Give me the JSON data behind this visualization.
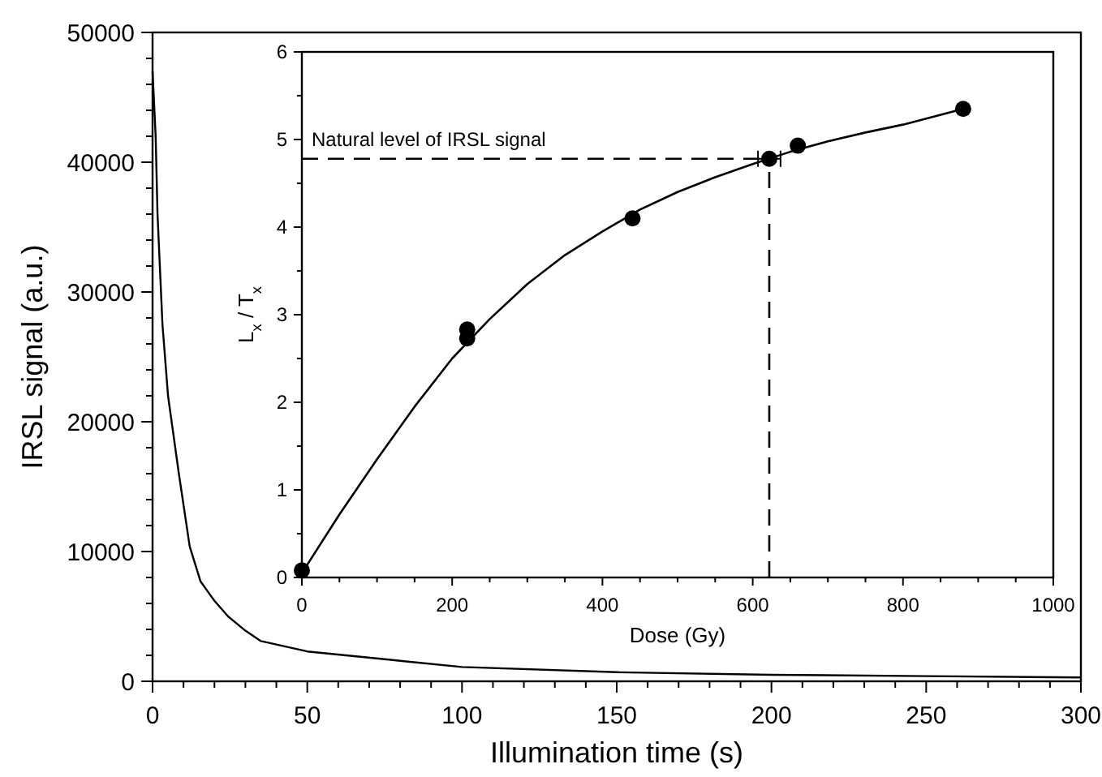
{
  "chart_data": [
    {
      "type": "line",
      "xlabel": "Illumination time (s)",
      "ylabel": "IRSL signal (a.u.)",
      "xlim": [
        0,
        300
      ],
      "ylim": [
        0,
        50000
      ],
      "xticks": [
        0,
        {
          "value": 10,
          "label": null
        },
        {
          "value": 20,
          "label": null
        },
        {
          "value": 30,
          "label": null
        },
        {
          "value": 40,
          "label": null
        },
        50,
        {
          "value": 60,
          "label": null
        },
        {
          "value": 70,
          "label": null
        },
        {
          "value": 80,
          "label": null
        },
        {
          "value": 90,
          "label": null
        },
        100,
        {
          "value": 110,
          "label": null
        },
        {
          "value": 120,
          "label": null
        },
        {
          "value": 130,
          "label": null
        },
        {
          "value": 140,
          "label": null
        },
        150,
        {
          "value": 160,
          "label": null
        },
        {
          "value": 170,
          "label": null
        },
        {
          "value": 180,
          "label": null
        },
        {
          "value": 190,
          "label": null
        },
        200,
        {
          "value": 210,
          "label": null
        },
        {
          "value": 220,
          "label": null
        },
        {
          "value": 230,
          "label": null
        },
        {
          "value": 240,
          "label": null
        },
        250,
        {
          "value": 260,
          "label": null
        },
        {
          "value": 270,
          "label": null
        },
        {
          "value": 280,
          "label": null
        },
        {
          "value": 290,
          "label": null
        },
        300
      ],
      "yticks": [
        0,
        {
          "value": 2000,
          "label": null
        },
        {
          "value": 4000,
          "label": null
        },
        {
          "value": 6000,
          "label": null
        },
        {
          "value": 8000,
          "label": null
        },
        10000,
        {
          "value": 12000,
          "label": null
        },
        {
          "value": 14000,
          "label": null
        },
        {
          "value": 16000,
          "label": null
        },
        {
          "value": 18000,
          "label": null
        },
        20000,
        {
          "value": 22000,
          "label": null
        },
        {
          "value": 24000,
          "label": null
        },
        {
          "value": 26000,
          "label": null
        },
        {
          "value": 28000,
          "label": null
        },
        30000,
        {
          "value": 32000,
          "label": null
        },
        {
          "value": 34000,
          "label": null
        },
        {
          "value": 36000,
          "label": null
        },
        {
          "value": 38000,
          "label": null
        },
        40000,
        {
          "value": 42000,
          "label": null
        },
        {
          "value": 44000,
          "label": null
        },
        {
          "value": 46000,
          "label": null
        },
        {
          "value": 48000,
          "label": null
        },
        50000
      ],
      "x": [
        0,
        1,
        1.6,
        3.2,
        5,
        8.5,
        12,
        15.5,
        20,
        24.4,
        30,
        35,
        50,
        75,
        100,
        150,
        200,
        250,
        300
      ],
      "series": [
        {
          "color": "#000000",
          "values": [
            47000,
            42000,
            36000,
            27500,
            22000,
            16000,
            10400,
            7700,
            6200,
            5000,
            3900,
            3100,
            2300,
            1700,
            1100,
            700,
            500,
            400,
            300
          ]
        }
      ]
    },
    {
      "type": "scatter",
      "xlabel": "Dose (Gy)",
      "ylabel": "L$_{x}$ / T$_{x}$",
      "xlim": [
        0,
        1000
      ],
      "ylim": [
        0,
        6
      ],
      "xticks": [
        0,
        {
          "value": 50,
          "label": null
        },
        {
          "value": 100,
          "label": null
        },
        {
          "value": 150,
          "label": null
        },
        200,
        {
          "value": 250,
          "label": null
        },
        {
          "value": 300,
          "label": null
        },
        {
          "value": 350,
          "label": null
        },
        400,
        {
          "value": 450,
          "label": null
        },
        {
          "value": 500,
          "label": null
        },
        {
          "value": 550,
          "label": null
        },
        600,
        {
          "value": 650,
          "label": null
        },
        {
          "value": 700,
          "label": null
        },
        {
          "value": 750,
          "label": null
        },
        800,
        {
          "value": 850,
          "label": null
        },
        {
          "value": 900,
          "label": null
        },
        {
          "value": 950,
          "label": null
        },
        1000
      ],
      "yticks": [
        0,
        {
          "value": 0.5,
          "label": null
        },
        1,
        {
          "value": 1.5,
          "label": null
        },
        2,
        {
          "value": 2.5,
          "label": null
        },
        3,
        {
          "value": 3.5,
          "label": null
        },
        4,
        {
          "value": 4.5,
          "label": null
        },
        5,
        {
          "value": 5.5,
          "label": null
        },
        6
      ],
      "annotations": [
        {
          "text": "Natural level of IRSL signal",
          "x": 0,
          "y": 4.78
        }
      ],
      "series": [
        {
          "type": "line",
          "color": "#000000",
          "x": [
            0,
            50,
            100,
            150,
            200,
            250,
            300,
            350,
            400,
            450,
            500,
            550,
            600,
            650,
            700,
            750,
            800,
            880
          ],
          "values": [
            0.05,
            0.72,
            1.35,
            1.95,
            2.5,
            2.95,
            3.35,
            3.68,
            3.95,
            4.2,
            4.4,
            4.57,
            4.72,
            4.86,
            4.98,
            5.08,
            5.17,
            5.35
          ]
        },
        {
          "type": "line",
          "line_style": "dashed",
          "color": "#000000",
          "x": [
            0,
            622
          ],
          "values": [
            4.78,
            4.78
          ]
        },
        {
          "type": "line",
          "line_style": "dashed",
          "color": "#000000",
          "x": [
            622,
            622
          ],
          "values": [
            0,
            4.78
          ]
        },
        {
          "marker": "circle",
          "color": "#000000",
          "x": [
            0,
            220,
            220,
            440,
            622,
            660,
            880
          ],
          "values": [
            0.08,
            2.73,
            2.83,
            4.1,
            4.78,
            4.93,
            5.35
          ],
          "xerrors": [
            null,
            null,
            null,
            null,
            15,
            null,
            null
          ]
        }
      ]
    }
  ]
}
